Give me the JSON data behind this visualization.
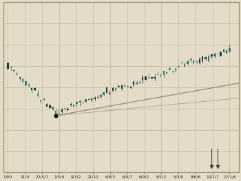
{
  "background_color": "#e4dcc8",
  "grid_color": "#bfb89a",
  "plot_bg": "#e4dcc8",
  "border_color": "#9a9070",
  "x_labels": [
    "13/9",
    "21/9",
    "22/5/7",
    "1/5/9",
    "9/3/2",
    "21/10",
    "6/8/3",
    "6/4/7",
    "6/9/2",
    "8/1/2",
    "5/3/0",
    "8/6/6",
    "10/1/7",
    "17/1/6"
  ],
  "candle_color_bull": "#2d7a6e",
  "candle_color_bear": "#1a3a35",
  "fib_line1_color": "#4a4030",
  "fib_line2_color": "#807868",
  "fib_line3_color": "#9a9282",
  "dot_color": "#151008",
  "n_candles": 75,
  "dip_idx": 16,
  "seed": 12
}
